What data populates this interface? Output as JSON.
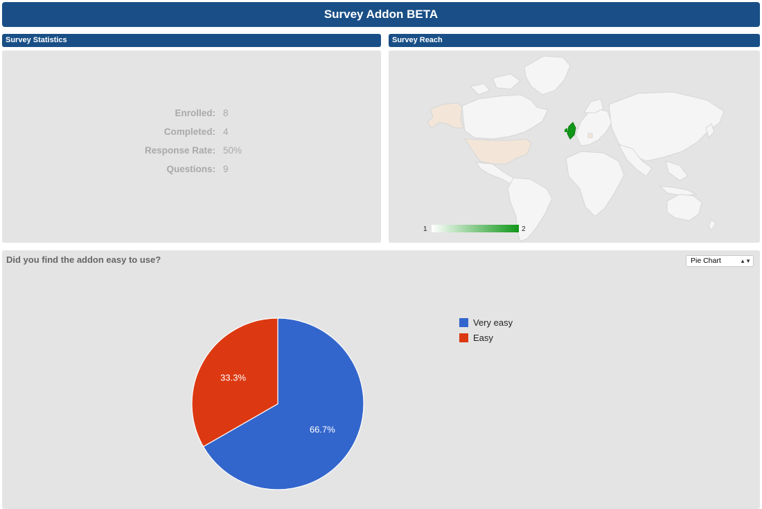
{
  "app": {
    "title": "Survey Addon BETA"
  },
  "stats_panel": {
    "header": "Survey Statistics",
    "rows": [
      {
        "label": "Enrolled:",
        "value": "8"
      },
      {
        "label": "Completed:",
        "value": "4"
      },
      {
        "label": "Response Rate:",
        "value": "50%"
      },
      {
        "label": "Questions:",
        "value": "9"
      }
    ]
  },
  "reach_panel": {
    "header": "Survey Reach",
    "scale_min": "1",
    "scale_max": "2",
    "colors": {
      "land": "#f5f5f5",
      "highlight_low": "#f3e6d8",
      "highlight_high": "#109618",
      "water": "#e4e4e4"
    }
  },
  "question_panel": {
    "question": "Did you find the addon easy to use?",
    "chart_type_select": "Pie Chart"
  },
  "chart_data": {
    "type": "pie",
    "labels": [
      "Very easy",
      "Easy"
    ],
    "values": [
      66.7,
      33.3
    ],
    "slice_labels": [
      "66.7%",
      "33.3%"
    ],
    "colors": [
      "#3366cc",
      "#dc3912"
    ],
    "legend": "right"
  }
}
